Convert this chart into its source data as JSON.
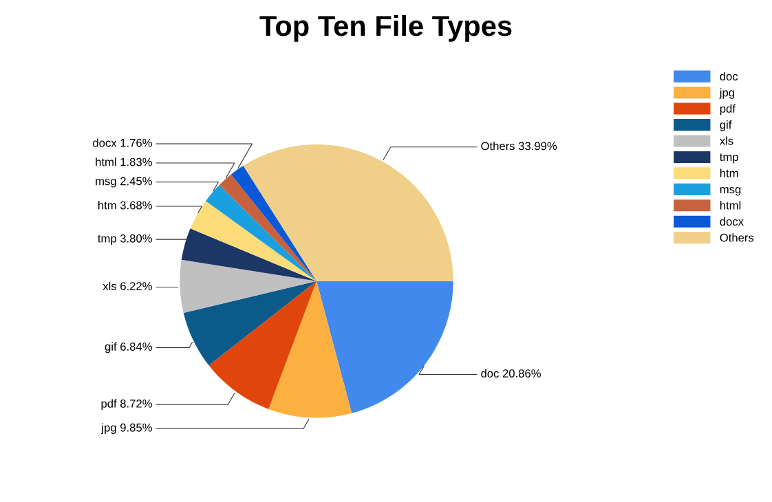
{
  "chart_data": {
    "type": "pie",
    "title": "Top Ten File Types",
    "categories": [
      "doc",
      "jpg",
      "pdf",
      "gif",
      "xls",
      "tmp",
      "htm",
      "msg",
      "html",
      "docx",
      "Others"
    ],
    "values": [
      20.86,
      9.85,
      8.72,
      6.84,
      6.22,
      3.8,
      3.68,
      2.45,
      1.83,
      1.76,
      33.99
    ],
    "value_labels": [
      "20.86%",
      "9.85%",
      "8.72%",
      "6.84%",
      "6.22%",
      "3.80%",
      "3.68%",
      "2.45%",
      "1.83%",
      "1.76%",
      "33.99%"
    ],
    "colors": [
      "#4189ed",
      "#fbb040",
      "#e0460c",
      "#0b5a8a",
      "#c0c0c0",
      "#1c3766",
      "#fddc7a",
      "#1a9fdf",
      "#c8623e",
      "#0a5ad8",
      "#f0cf88"
    ],
    "legend": "top right"
  }
}
